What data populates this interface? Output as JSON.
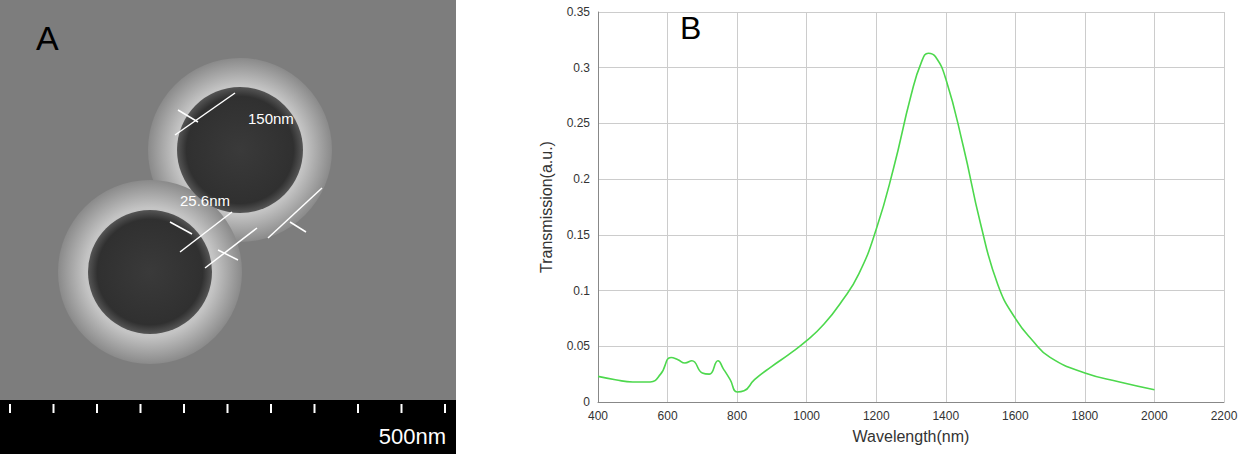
{
  "panel_a": {
    "label": "A",
    "annotations": [
      "150nm",
      "25.6nm"
    ],
    "scale_bar": "500nm"
  },
  "chart_data": {
    "type": "line",
    "label": "B",
    "xlabel": "Wavelength(nm)",
    "ylabel": "Transmission(a.u.)",
    "x": [
      400,
      450,
      500,
      550,
      580,
      610,
      630,
      650,
      670,
      700,
      720,
      745,
      760,
      780,
      800,
      820,
      850,
      900,
      950,
      1000,
      1050,
      1100,
      1150,
      1200,
      1250,
      1300,
      1330,
      1350,
      1370,
      1400,
      1450,
      1500,
      1550,
      1600,
      1650,
      1700,
      1800,
      1900,
      2000
    ],
    "series": [
      {
        "color": "#4dd84d",
        "values": [
          0.023,
          0.02,
          0.018,
          0.018,
          0.025,
          0.04,
          0.038,
          0.035,
          0.037,
          0.026,
          0.025,
          0.037,
          0.03,
          0.02,
          0.009,
          0.01,
          0.02,
          0.032,
          0.043,
          0.055,
          0.07,
          0.09,
          0.115,
          0.155,
          0.21,
          0.275,
          0.305,
          0.313,
          0.31,
          0.29,
          0.23,
          0.16,
          0.105,
          0.075,
          0.055,
          0.04,
          0.026,
          0.018,
          0.011
        ]
      }
    ],
    "xlim": [
      400,
      2200
    ],
    "xticks": [
      400,
      600,
      800,
      1000,
      1200,
      1400,
      1600,
      1800,
      2000,
      2200
    ],
    "ylim": [
      0,
      0.35
    ],
    "yticks": [
      0,
      0.05,
      0.1,
      0.15,
      0.2,
      0.25,
      0.3,
      0.35
    ],
    "grid": true
  }
}
